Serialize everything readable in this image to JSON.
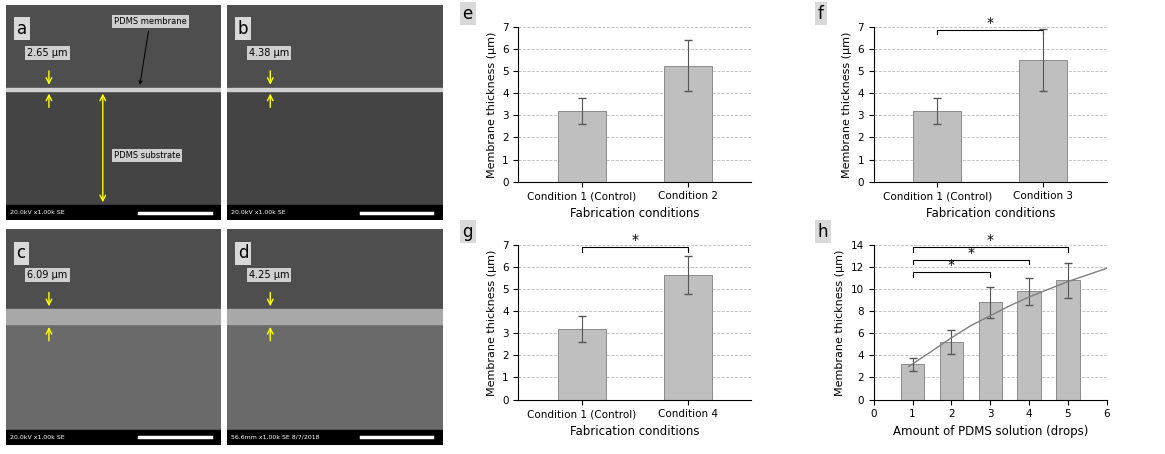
{
  "images": [
    {
      "panel": "a",
      "thickness_label": "2.65 µm",
      "footer": "20.0kV x1.00k SE",
      "labels": [
        "PDMS membrane",
        "PDMS substrate"
      ]
    },
    {
      "panel": "b",
      "thickness_label": "4.38 µm",
      "footer": "20.0kV x1.00k SE",
      "labels": []
    },
    {
      "panel": "c",
      "thickness_label": "6.09 µm",
      "footer": "20.0kV x1.00k SE",
      "labels": []
    },
    {
      "panel": "d",
      "thickness_label": "4.25 µm",
      "footer": "56.6mm x1.00k SE 8/7/2018",
      "labels": []
    }
  ],
  "chart_data": [
    {
      "type": "bar",
      "panel": "e",
      "categories": [
        "Condition 1 (Control)",
        "Condition 2"
      ],
      "values": [
        3.2,
        5.25
      ],
      "errors": [
        0.6,
        1.15
      ],
      "color": "#bfbfbf",
      "ylim": [
        0,
        7
      ],
      "yticks": [
        0,
        1,
        2,
        3,
        4,
        5,
        6,
        7
      ],
      "grid": true,
      "y_label": "Membrane thickness (µm)",
      "x_label": "Fabrication conditions",
      "significance": []
    },
    {
      "type": "bar",
      "panel": "f",
      "categories": [
        "Condition 1 (Control)",
        "Condition 3"
      ],
      "values": [
        3.2,
        5.5
      ],
      "errors": [
        0.6,
        1.4
      ],
      "color": "#bfbfbf",
      "ylim": [
        0,
        7
      ],
      "yticks": [
        0,
        1,
        2,
        3,
        4,
        5,
        6,
        7
      ],
      "grid": true,
      "y_label": "Membrane thickness (µm)",
      "x_label": "Fabrication conditions",
      "significance": [
        {
          "from": 0,
          "to": 1,
          "label": "*"
        }
      ]
    },
    {
      "type": "bar",
      "panel": "g",
      "categories": [
        "Condition 1 (Control)",
        "Condition 4"
      ],
      "values": [
        3.2,
        5.65
      ],
      "errors": [
        0.6,
        0.85
      ],
      "color": "#bfbfbf",
      "ylim": [
        0,
        7
      ],
      "yticks": [
        0,
        1,
        2,
        3,
        4,
        5,
        6,
        7
      ],
      "grid": true,
      "y_label": "Membrane thickness (µm)",
      "x_label": "Fabrication conditions",
      "significance": [
        {
          "from": 0,
          "to": 1,
          "label": "*"
        }
      ]
    },
    {
      "type": "bar",
      "panel": "h",
      "x": [
        1,
        2,
        3,
        4,
        5
      ],
      "values": [
        3.2,
        5.25,
        8.8,
        9.8,
        10.8
      ],
      "errors": [
        0.6,
        1.1,
        1.4,
        1.2,
        1.6
      ],
      "color": "#bfbfbf",
      "xlim": [
        0,
        6
      ],
      "xticks": [
        0,
        1,
        2,
        3,
        4,
        5,
        6
      ],
      "ylim": [
        0,
        14
      ],
      "yticks": [
        0,
        2,
        4,
        6,
        8,
        10,
        12,
        14
      ],
      "grid": true,
      "y_label": "Membrane thickness (µm)",
      "x_label": "Amount of PDMS solution (drops)",
      "trend": {
        "x": [
          0.9,
          1.5,
          2,
          2.5,
          3,
          3.5,
          4,
          4.5,
          5,
          5.5,
          6
        ],
        "values": [
          3.0,
          4.4,
          5.6,
          6.7,
          7.6,
          8.5,
          9.3,
          10.0,
          10.7,
          11.3,
          11.9
        ]
      },
      "significance": [
        {
          "from": 0,
          "to": 2,
          "label": "*"
        },
        {
          "from": 0,
          "to": 3,
          "label": "*"
        },
        {
          "from": 0,
          "to": 4,
          "label": "*"
        }
      ]
    }
  ]
}
